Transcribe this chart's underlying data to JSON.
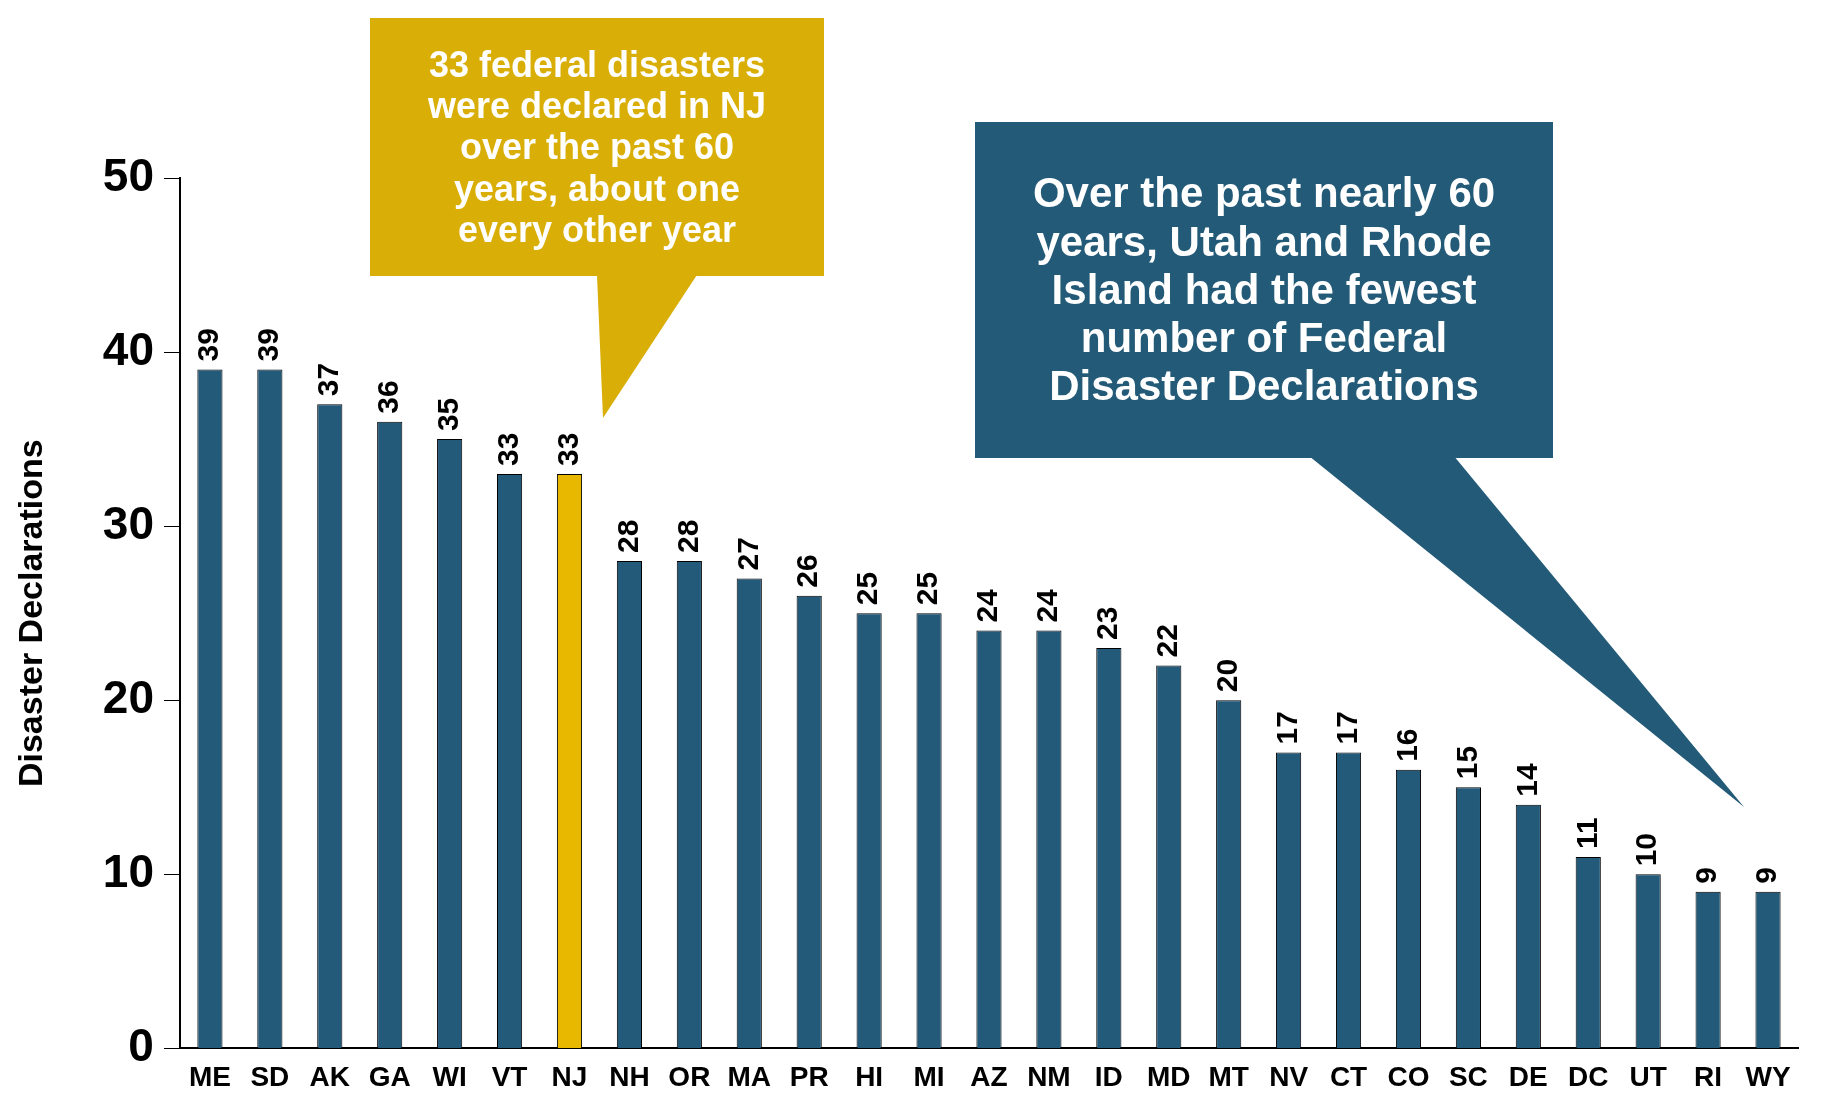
{
  "chart_data": {
    "type": "bar",
    "ylabel": "Disaster Declarations",
    "categories": [
      "ME",
      "SD",
      "AK",
      "GA",
      "WI",
      "VT",
      "NJ",
      "NH",
      "OR",
      "MA",
      "PR",
      "HI",
      "MI",
      "AZ",
      "NM",
      "ID",
      "MD",
      "MT",
      "NV",
      "CT",
      "CO",
      "SC",
      "DE",
      "DC",
      "UT",
      "RI",
      "WY"
    ],
    "values": [
      39,
      39,
      37,
      36,
      35,
      33,
      33,
      28,
      28,
      27,
      26,
      25,
      25,
      24,
      24,
      23,
      22,
      20,
      17,
      17,
      16,
      15,
      14,
      11,
      10,
      9,
      9
    ],
    "colors": [
      "#235a7a",
      "#235a7a",
      "#235a7a",
      "#235a7a",
      "#235a7a",
      "#235a7a",
      "#e8b800",
      "#235a7a",
      "#235a7a",
      "#235a7a",
      "#235a7a",
      "#235a7a",
      "#235a7a",
      "#235a7a",
      "#235a7a",
      "#235a7a",
      "#235a7a",
      "#235a7a",
      "#235a7a",
      "#235a7a",
      "#235a7a",
      "#235a7a",
      "#235a7a",
      "#235a7a",
      "#235a7a",
      "#235a7a",
      "#235a7a"
    ],
    "ylim": [
      0,
      50
    ],
    "yticks": [
      0,
      10,
      20,
      30,
      40,
      50
    ],
    "grid": false,
    "legend": false,
    "data_labels": true,
    "annotations": [
      "33 federal disasters were declared in NJ over the past 60 years, about one every other year",
      "Over the past nearly 60 years, Utah and Rhode Island had the fewest number of Federal Disaster Declarations"
    ]
  }
}
